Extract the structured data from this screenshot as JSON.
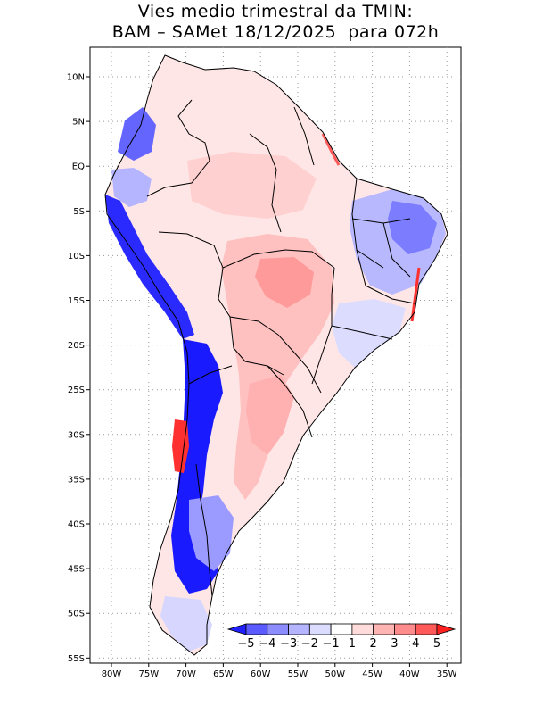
{
  "title": {
    "line1": "Vies medio trimestral da TMIN:",
    "line2": "BAM – SAMet 18/12/2025  para 072h"
  },
  "axes": {
    "lat_ticks": [
      "10N",
      "5N",
      "EQ",
      "5S",
      "10S",
      "15S",
      "20S",
      "25S",
      "30S",
      "35S",
      "40S",
      "45S",
      "50S",
      "55S"
    ],
    "lon_ticks": [
      "80W",
      "75W",
      "70W",
      "65W",
      "60W",
      "55W",
      "50W",
      "45W",
      "40W",
      "35W"
    ]
  },
  "colorbar": {
    "colors": [
      "#2020ff",
      "#5a5aff",
      "#8c8cff",
      "#b4b4ff",
      "#dcdcff",
      "#ffffff",
      "#ffdcdc",
      "#ffb4b4",
      "#ff8c8c",
      "#ff5a5a",
      "#ff2020"
    ],
    "labels": [
      "−5",
      "−4",
      "−3",
      "−2",
      "−1",
      "1",
      "2",
      "3",
      "4",
      "5"
    ]
  },
  "palette": {
    "strong_cold": "#1a1aff",
    "cold": "#6a6aff",
    "mild_cold": "#b4b4ff",
    "slight_cold": "#dcdcff",
    "slight_warm": "#ffdcdc",
    "mild_warm": "#ffb4b4",
    "warm": "#ff8c8c",
    "strong_warm": "#ff2020"
  }
}
